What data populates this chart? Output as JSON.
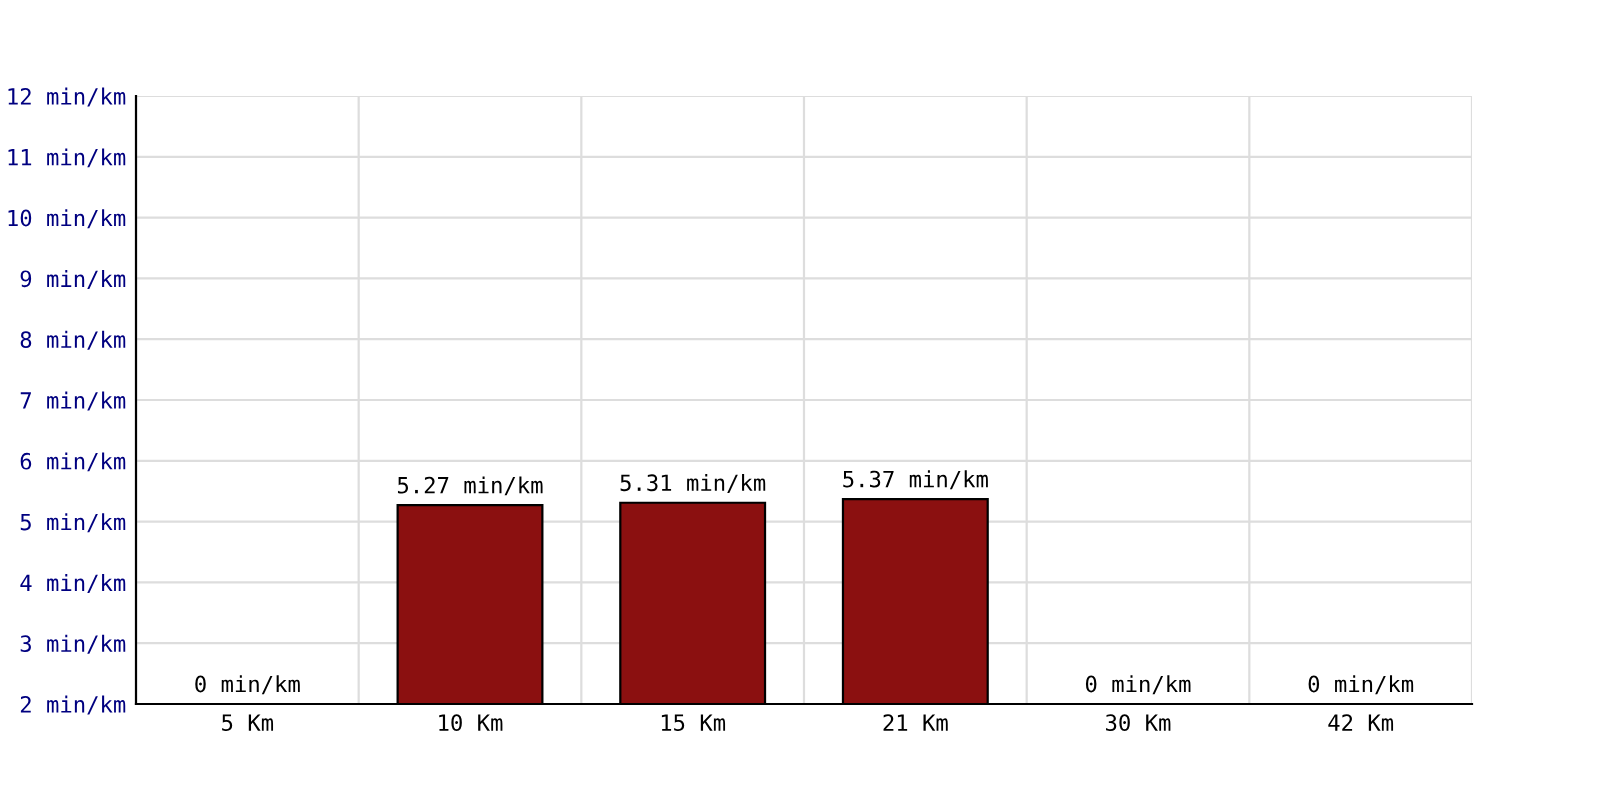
{
  "chart_data": {
    "type": "bar",
    "categories": [
      "5 Km",
      "10 Km",
      "15 Km",
      "21 Km",
      "30 Km",
      "42 Km"
    ],
    "values": [
      null,
      5.27,
      5.31,
      5.37,
      null,
      null
    ],
    "value_labels": [
      "0 min/km",
      "5.27 min/km",
      "5.31 min/km",
      "5.37 min/km",
      "0 min/km",
      "0 min/km"
    ],
    "color": "#8b1010",
    "ylim": [
      2,
      12
    ],
    "yticks": [
      {
        "value": 2,
        "label": "2 min/km"
      },
      {
        "value": 3,
        "label": "3 min/km"
      },
      {
        "value": 4,
        "label": "4 min/km"
      },
      {
        "value": 5,
        "label": "5 min/km"
      },
      {
        "value": 6,
        "label": "6 min/km"
      },
      {
        "value": 7,
        "label": "7 min/km"
      },
      {
        "value": 8,
        "label": "8 min/km"
      },
      {
        "value": 9,
        "label": "9 min/km"
      },
      {
        "value": 10,
        "label": "10 min/km"
      },
      {
        "value": 11,
        "label": "11 min/km"
      },
      {
        "value": 12,
        "label": "12 min/km"
      }
    ],
    "grid": true
  }
}
